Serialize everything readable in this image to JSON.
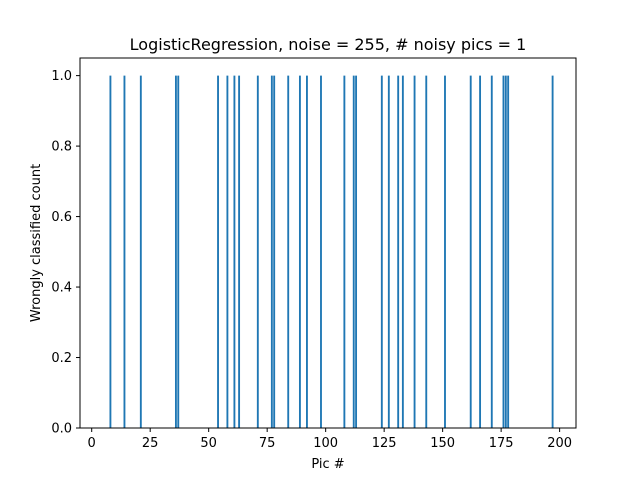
{
  "chart_data": {
    "type": "bar",
    "title": "LogisticRegression, noise = 255, # noisy pics = 1",
    "xlabel": "Pic #",
    "ylabel": "Wrongly classified count",
    "xlim": [
      -5,
      207
    ],
    "ylim": [
      0,
      1.05
    ],
    "xticks": [
      0,
      25,
      50,
      75,
      100,
      125,
      150,
      175,
      200
    ],
    "xtick_labels": [
      "0",
      "25",
      "50",
      "75",
      "100",
      "125",
      "150",
      "175",
      "200"
    ],
    "yticks": [
      0.0,
      0.2,
      0.4,
      0.6,
      0.8,
      1.0
    ],
    "ytick_labels": [
      "0.0",
      "0.2",
      "0.4",
      "0.6",
      "0.8",
      "1.0"
    ],
    "bar_color": "#1f77b4",
    "series": [
      {
        "name": "Wrongly classified count",
        "x": [
          8,
          14,
          21,
          36,
          37,
          54,
          58,
          61,
          63,
          71,
          77,
          78,
          84,
          89,
          92,
          98,
          108,
          112,
          113,
          124,
          127,
          131,
          133,
          138,
          143,
          151,
          162,
          166,
          171,
          176,
          177,
          178,
          197
        ],
        "values": [
          1,
          1,
          1,
          1,
          1,
          1,
          1,
          1,
          1,
          1,
          1,
          1,
          1,
          1,
          1,
          1,
          1,
          1,
          1,
          1,
          1,
          1,
          1,
          1,
          1,
          1,
          1,
          1,
          1,
          1,
          1,
          1,
          1
        ]
      }
    ]
  }
}
